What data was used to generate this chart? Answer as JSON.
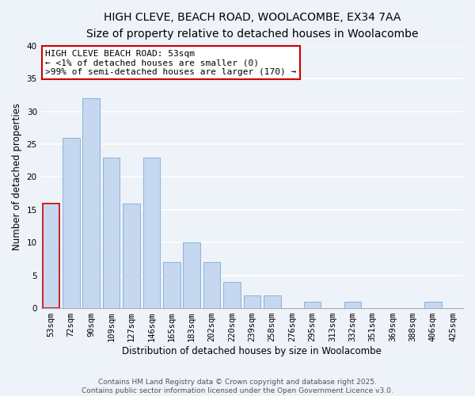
{
  "title": "HIGH CLEVE, BEACH ROAD, WOOLACOMBE, EX34 7AA",
  "subtitle": "Size of property relative to detached houses in Woolacombe",
  "xlabel": "Distribution of detached houses by size in Woolacombe",
  "ylabel": "Number of detached properties",
  "bins": [
    "53sqm",
    "72sqm",
    "90sqm",
    "109sqm",
    "127sqm",
    "146sqm",
    "165sqm",
    "183sqm",
    "202sqm",
    "220sqm",
    "239sqm",
    "258sqm",
    "276sqm",
    "295sqm",
    "313sqm",
    "332sqm",
    "351sqm",
    "369sqm",
    "388sqm",
    "406sqm",
    "425sqm"
  ],
  "values": [
    16,
    26,
    32,
    23,
    16,
    23,
    7,
    10,
    7,
    4,
    2,
    2,
    0,
    1,
    0,
    1,
    0,
    0,
    0,
    1,
    0
  ],
  "bar_color": "#c5d8f0",
  "highlight_bar_edge_color": "#cc0000",
  "normal_bar_edge_color": "#7baad4",
  "highlight_index": 0,
  "ylim": [
    0,
    40
  ],
  "yticks": [
    0,
    5,
    10,
    15,
    20,
    25,
    30,
    35,
    40
  ],
  "annotation_line1": "HIGH CLEVE BEACH ROAD: 53sqm",
  "annotation_line2": "← <1% of detached houses are smaller (0)",
  "annotation_line3": ">99% of semi-detached houses are larger (170) →",
  "annotation_box_edge_color": "#cc0000",
  "footer_line1": "Contains HM Land Registry data © Crown copyright and database right 2025.",
  "footer_line2": "Contains public sector information licensed under the Open Government Licence v3.0.",
  "background_color": "#eef2f9",
  "grid_color": "#ffffff",
  "title_fontsize": 10,
  "subtitle_fontsize": 9,
  "axis_label_fontsize": 8.5,
  "tick_fontsize": 7.5,
  "annotation_fontsize": 8
}
